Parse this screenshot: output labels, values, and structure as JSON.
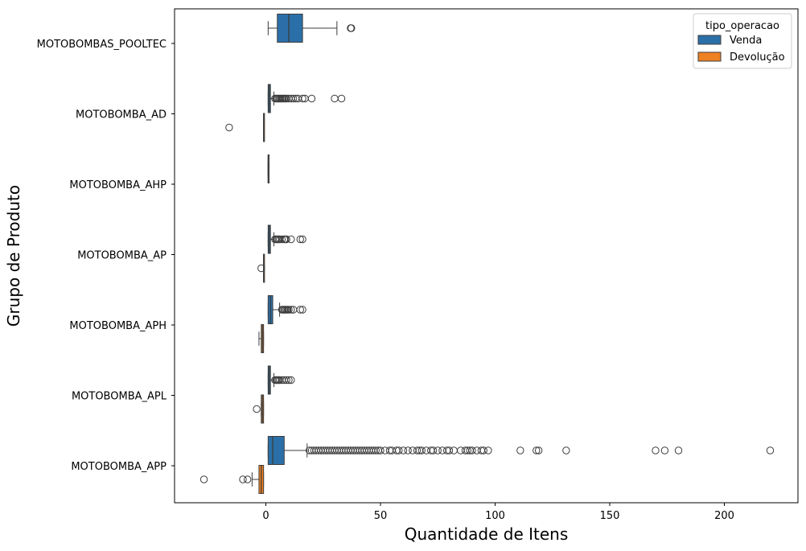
{
  "chart_data": {
    "type": "boxplot",
    "orientation": "horizontal",
    "xlabel": "Quantidade de Itens",
    "ylabel": "Grupo de Produto",
    "xlim": [
      -40,
      233
    ],
    "xticks": [
      0,
      50,
      100,
      150,
      200
    ],
    "categories": [
      "MOTOBOMBAS_POOLTEC",
      "MOTOBOMBA_AD",
      "MOTOBOMBA_AHP",
      "MOTOBOMBA_AP",
      "MOTOBOMBA_APH",
      "MOTOBOMBA_APL",
      "MOTOBOMBA_APP"
    ],
    "legend": {
      "title": "tipo_operacao",
      "position": "top-right",
      "entries": [
        {
          "label": "Venda",
          "color": "#2b6fa8"
        },
        {
          "label": "Devolução",
          "color": "#ee8122"
        }
      ]
    },
    "series": [
      {
        "name": "Venda",
        "color": "#2b6fa8",
        "boxes": [
          {
            "category": "MOTOBOMBAS_POOLTEC",
            "whisker_low": 1,
            "q1": 5,
            "median": 10,
            "q3": 16,
            "whisker_high": 31,
            "outliers": [
              37,
              37.3
            ]
          },
          {
            "category": "MOTOBOMBA_AD",
            "whisker_low": 1,
            "q1": 1,
            "median": 1.5,
            "q3": 2,
            "whisker_high": 3.5,
            "outliers": [
              4,
              4.5,
              5,
              5.5,
              6,
              6.5,
              7,
              7.5,
              8,
              8.5,
              9,
              10,
              11,
              12,
              13,
              14,
              16,
              17,
              20,
              30,
              33
            ]
          },
          {
            "category": "MOTOBOMBA_AHP",
            "whisker_low": 1,
            "q1": 1,
            "median": 1,
            "q3": 1,
            "whisker_high": 1,
            "outliers": []
          },
          {
            "category": "MOTOBOMBA_AP",
            "whisker_low": 1,
            "q1": 1,
            "median": 1.5,
            "q3": 2,
            "whisker_high": 3.5,
            "outliers": [
              4,
              4.5,
              5,
              5.5,
              6,
              7,
              8,
              8.5,
              9,
              11,
              15,
              16
            ]
          },
          {
            "category": "MOTOBOMBA_APH",
            "whisker_low": 1,
            "q1": 1,
            "median": 2,
            "q3": 3,
            "whisker_high": 6,
            "outliers": [
              7,
              7.5,
              8,
              8.5,
              9,
              9.5,
              10,
              11,
              12,
              15,
              16
            ]
          },
          {
            "category": "MOTOBOMBA_APL",
            "whisker_low": 1,
            "q1": 1,
            "median": 1.5,
            "q3": 2,
            "whisker_high": 3.5,
            "outliers": [
              4,
              4.5,
              5,
              5.5,
              6,
              7,
              8,
              9,
              10,
              11
            ]
          },
          {
            "category": "MOTOBOMBA_APP",
            "whisker_low": 1,
            "q1": 1,
            "median": 3,
            "q3": 8,
            "whisker_high": 18,
            "outliers": [
              19,
              20,
              21,
              22,
              23,
              24,
              25,
              26,
              27,
              28,
              29,
              30,
              31,
              32,
              33,
              34,
              35,
              36,
              37,
              38,
              39,
              40,
              41,
              42,
              43,
              44,
              45,
              46,
              47,
              48,
              49,
              50,
              52,
              54,
              55,
              57,
              58,
              60,
              62,
              64,
              66,
              67,
              68,
              70,
              72,
              73,
              75,
              77,
              79,
              80,
              82,
              85,
              87,
              88,
              89,
              90,
              92,
              94,
              95,
              97,
              111,
              118,
              119,
              131,
              170,
              174,
              180,
              220
            ]
          }
        ]
      },
      {
        "name": "Devolução",
        "color": "#ee8122",
        "boxes": [
          {
            "category": "MOTOBOMBA_AD",
            "whisker_low": -1,
            "q1": -1,
            "median": -1,
            "q3": -1,
            "whisker_high": -1,
            "outliers": [
              -16
            ]
          },
          {
            "category": "MOTOBOMBA_AP",
            "whisker_low": -1,
            "q1": -1,
            "median": -1,
            "q3": -1,
            "whisker_high": -1,
            "outliers": [
              -2
            ]
          },
          {
            "category": "MOTOBOMBA_APH",
            "whisker_low": -3,
            "q1": -2,
            "median": -1.5,
            "q3": -1,
            "whisker_high": -1,
            "outliers": []
          },
          {
            "category": "MOTOBOMBA_APL",
            "whisker_low": -2,
            "q1": -2,
            "median": -1.5,
            "q3": -1,
            "whisker_high": -1,
            "outliers": [
              -4
            ]
          },
          {
            "category": "MOTOBOMBA_APP",
            "whisker_low": -6,
            "q1": -3,
            "median": -2,
            "q3": -1,
            "whisker_high": -1,
            "outliers": [
              -27,
              -10,
              -8
            ]
          }
        ]
      }
    ]
  }
}
